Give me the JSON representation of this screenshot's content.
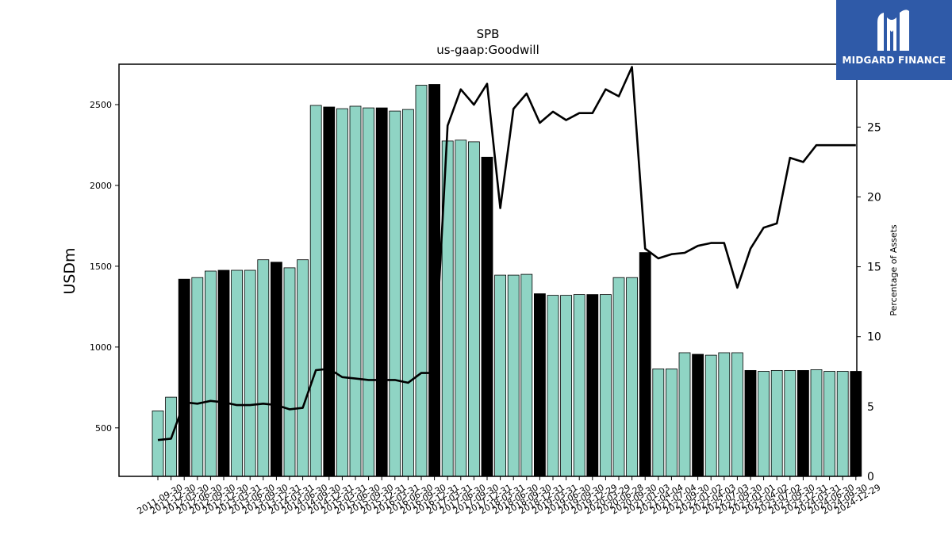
{
  "brand": {
    "name": "MIDGARD FINANCE",
    "icon": "midgard-logo-icon",
    "bg_color": "#2f5aa8"
  },
  "chart_data": {
    "type": "bar",
    "title": "SPB",
    "subtitle": "us-gaap:Goodwill",
    "ylabel": "USDm",
    "y2label": "Percentage of Assets",
    "ylim": [
      200,
      2750
    ],
    "y2lim": [
      0,
      29.5
    ],
    "yticks": [
      500,
      1000,
      1500,
      2000,
      2500
    ],
    "y2ticks": [
      0,
      5,
      10,
      15,
      20,
      25
    ],
    "grid": false,
    "colors": {
      "bar": "#8fd4c4",
      "bar_highlight": "#000000",
      "line": "#000000"
    },
    "categories": [
      "2011-09-30",
      "2011-12-30",
      "2012-03-30",
      "2012-06-30",
      "2012-09-30",
      "2012-12-30",
      "2013-03-31",
      "2013-06-30",
      "2013-09-30",
      "2013-12-31",
      "2014-03-31",
      "2014-06-30",
      "2014-09-30",
      "2014-12-31",
      "2015-03-31",
      "2015-06-30",
      "2015-09-30",
      "2015-12-31",
      "2016-03-31",
      "2016-06-30",
      "2016-09-30",
      "2016-12-31",
      "2017-03-31",
      "2017-06-30",
      "2017-09-30",
      "2017-12-31",
      "2018-03-31",
      "2018-06-30",
      "2018-09-30",
      "2018-12-31",
      "2019-03-31",
      "2019-06-30",
      "2019-09-30",
      "2019-12-29",
      "2020-03-29",
      "2020-06-28",
      "2020-09-30",
      "2021-01-03",
      "2021-04-04",
      "2021-07-04",
      "2021-09-30",
      "2022-01-02",
      "2022-04-03",
      "2022-07-03",
      "2022-09-30",
      "2023-01-01",
      "2023-04-02",
      "2023-07-02",
      "2023-09-30",
      "2023-12-31",
      "2024-03-31",
      "2024-06-30",
      "2024-09-30",
      "2024-12-29"
    ],
    "tick_labels_shown": [
      "2011-09-30",
      "2011-12-30",
      "2012-03-30",
      "2012-06-30",
      "2012-09-30",
      "2012-12-30",
      "2013-03-31",
      "2013-06-30",
      "2013-09-30",
      "2013-12-31",
      "2014-03-31",
      "2014-06-30",
      "2014-09-30",
      "2014-12-31",
      "2015-03-31",
      "2015-06-30",
      "2015-09-30",
      "2015-12-31",
      "2016-03-31",
      "2016-06-30",
      "2016-09-30",
      "2016-12-31",
      "2017-03-31",
      "2017-06-30",
      "2017-09-30",
      "2017-12-31",
      "2018-03-31",
      "2018-06-30",
      "2018-09-30",
      "2018-12-31",
      "2019-03-31",
      "2019-06-30",
      "2019-09-30",
      "2019-12-29",
      "2020-03-29",
      "2020-06-28",
      "2020-09-30",
      "2021-01-03",
      "2021-04-04",
      "2021-07-04",
      "2021-09-30",
      "2022-01-02",
      "2022-04-03",
      "2022-07-03",
      "2022-09-30",
      "2023-01-01",
      "2023-04-02",
      "2023-07-02",
      "2023-09-30",
      "2023-12-31",
      "2024-03-31",
      "2024-06-30",
      "2024-09-30",
      "2024-12-29"
    ],
    "series": [
      {
        "kind": "bar",
        "values": [
          605,
          690,
          1420,
          1430,
          1470,
          1475,
          1475,
          1475,
          1540,
          1525,
          1490,
          1540,
          2495,
          2485,
          2475,
          2490,
          2480,
          2480,
          2460,
          2470,
          2620,
          2625,
          2275,
          2280,
          2270,
          2175,
          1445,
          1445,
          1450,
          1330,
          1320,
          1320,
          1325,
          1325,
          1325,
          1430,
          1430,
          1585,
          865,
          865,
          965,
          955,
          950,
          965,
          965,
          855,
          850,
          855,
          855,
          855,
          860,
          850,
          850,
          850
        ],
        "highlight": [
          false,
          false,
          true,
          false,
          false,
          true,
          false,
          false,
          false,
          true,
          false,
          false,
          false,
          true,
          false,
          false,
          false,
          true,
          false,
          false,
          false,
          true,
          false,
          false,
          false,
          true,
          false,
          false,
          false,
          true,
          false,
          false,
          false,
          true,
          false,
          false,
          false,
          true,
          false,
          false,
          false,
          true,
          false,
          false,
          false,
          true,
          false,
          false,
          false,
          true,
          false,
          false,
          false,
          true
        ]
      },
      {
        "kind": "line",
        "axis": "right",
        "values": [
          2.6,
          2.7,
          5.3,
          5.2,
          5.4,
          5.3,
          5.1,
          5.1,
          5.2,
          5.1,
          4.8,
          4.9,
          7.6,
          7.7,
          7.1,
          7.0,
          6.9,
          6.9,
          6.9,
          6.7,
          7.4,
          7.4,
          25.1,
          27.7,
          26.6,
          28.1,
          19.2,
          26.3,
          27.4,
          25.3,
          26.1,
          25.5,
          26.0,
          26.0,
          27.7,
          27.2,
          29.3,
          16.3,
          15.6,
          15.9,
          16.0,
          16.5,
          16.7,
          16.7,
          13.5,
          16.3,
          17.8,
          18.1,
          22.8,
          22.5,
          23.7,
          23.7,
          23.7,
          23.7
        ]
      }
    ]
  }
}
